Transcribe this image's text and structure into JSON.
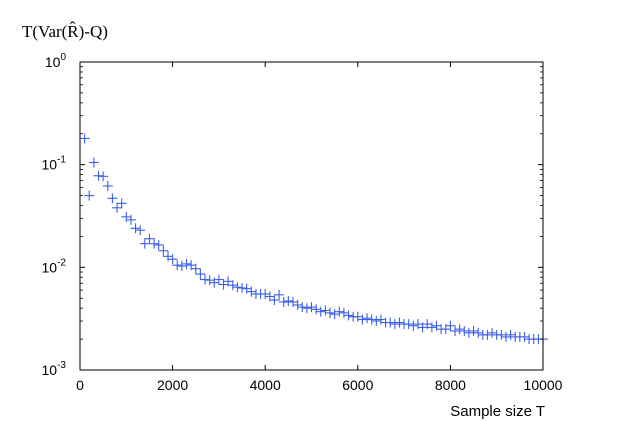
{
  "chart_data": {
    "type": "scatter",
    "title": "",
    "ylabel": "T(Var(R̂)-Q)",
    "xlabel": "Sample size T",
    "xlim": [
      0,
      10000
    ],
    "ylim": [
      0.001,
      1
    ],
    "yscale": "log",
    "x_ticks": [
      0,
      2000,
      4000,
      6000,
      8000,
      10000
    ],
    "x_tick_labels": [
      "0",
      "2000",
      "4000",
      "6000",
      "8000",
      "10000"
    ],
    "y_ticks": [
      0.001,
      0.01,
      0.1,
      1
    ],
    "y_tick_labels": [
      {
        "base": "10",
        "exp": "-3"
      },
      {
        "base": "10",
        "exp": "-2"
      },
      {
        "base": "10",
        "exp": "-1"
      },
      {
        "base": "10",
        "exp": "0"
      }
    ],
    "marker": "+",
    "marker_color": "#3b5fe8",
    "series": [
      {
        "name": "T(Var(R̂)-Q)",
        "x": [
          100,
          200,
          300,
          400,
          500,
          600,
          700,
          800,
          900,
          1000,
          1100,
          1200,
          1300,
          1400,
          1500,
          1600,
          1700,
          1800,
          1900,
          2000,
          2100,
          2200,
          2300,
          2400,
          2500,
          2600,
          2700,
          2800,
          2900,
          3000,
          3100,
          3200,
          3300,
          3400,
          3500,
          3600,
          3700,
          3800,
          3900,
          4000,
          4100,
          4200,
          4300,
          4400,
          4500,
          4600,
          4700,
          4800,
          4900,
          5000,
          5100,
          5200,
          5300,
          5400,
          5500,
          5600,
          5700,
          5800,
          5900,
          6000,
          6100,
          6200,
          6300,
          6400,
          6500,
          6600,
          6700,
          6800,
          6900,
          7000,
          7100,
          7200,
          7300,
          7400,
          7500,
          7600,
          7700,
          7800,
          7900,
          8000,
          8100,
          8200,
          8300,
          8400,
          8500,
          8600,
          8700,
          8800,
          8900,
          9000,
          9100,
          9200,
          9300,
          9400,
          9500,
          9600,
          9700,
          9800,
          9900,
          10000
        ],
        "y": [
          0.18,
          0.05,
          0.105,
          0.078,
          0.077,
          0.062,
          0.047,
          0.038,
          0.042,
          0.031,
          0.029,
          0.024,
          0.023,
          0.017,
          0.019,
          0.017,
          0.0165,
          0.0145,
          0.0128,
          0.012,
          0.0105,
          0.0103,
          0.0108,
          0.0105,
          0.0097,
          0.0086,
          0.0076,
          0.0075,
          0.0071,
          0.0076,
          0.0068,
          0.0073,
          0.0067,
          0.0064,
          0.0063,
          0.0062,
          0.0058,
          0.0055,
          0.0055,
          0.0055,
          0.0052,
          0.0048,
          0.0054,
          0.0046,
          0.0047,
          0.0046,
          0.0043,
          0.0041,
          0.004,
          0.0041,
          0.0039,
          0.0037,
          0.0038,
          0.0036,
          0.0035,
          0.0037,
          0.0036,
          0.0034,
          0.0033,
          0.0033,
          0.0031,
          0.0032,
          0.0031,
          0.003,
          0.0031,
          0.0029,
          0.0029,
          0.0028,
          0.0029,
          0.0028,
          0.0028,
          0.0027,
          0.0028,
          0.0026,
          0.0028,
          0.0026,
          0.0027,
          0.0025,
          0.0025,
          0.0027,
          0.0024,
          0.0025,
          0.0024,
          0.0023,
          0.0024,
          0.0023,
          0.0022,
          0.0022,
          0.0023,
          0.0022,
          0.0022,
          0.0021,
          0.0022,
          0.0021,
          0.0021,
          0.0021,
          0.002,
          0.002,
          0.002,
          0.002
        ]
      }
    ]
  }
}
